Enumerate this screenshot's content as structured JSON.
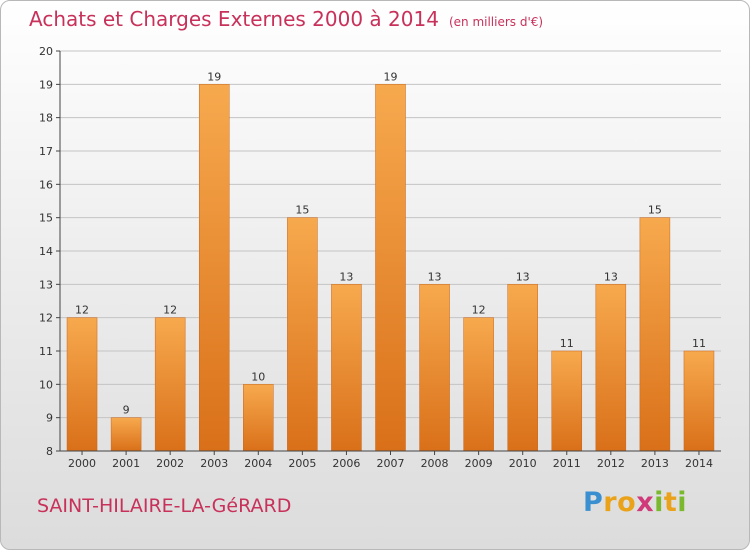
{
  "title": "Achats et Charges Externes 2000 à 2014",
  "unit": "(en milliers d'€)",
  "commune": "SAINT-HILAIRE-LA-GéRARD",
  "logo": {
    "text": "Proxiti",
    "letters": [
      {
        "char": "P",
        "color": "#3a8fd0"
      },
      {
        "char": "r",
        "color": "#e9a21a"
      },
      {
        "char": "o",
        "color": "#e9a21a"
      },
      {
        "char": "x",
        "color": "#d03a7a"
      },
      {
        "char": "i",
        "color": "#7ab82e"
      },
      {
        "char": "t",
        "color": "#e9a21a"
      },
      {
        "char": "i",
        "color": "#7ab82e"
      }
    ]
  },
  "colors": {
    "title": "#c8315a",
    "bar_light": "#f7a94e",
    "bar_dark": "#d97019",
    "axis": "#444444",
    "grid": "#c4c4c4"
  },
  "chart_data": {
    "type": "bar",
    "categories": [
      "2000",
      "2001",
      "2002",
      "2003",
      "2004",
      "2005",
      "2006",
      "2007",
      "2008",
      "2009",
      "2010",
      "2011",
      "2012",
      "2013",
      "2014"
    ],
    "values": [
      12,
      9,
      12,
      19,
      10,
      15,
      13,
      19,
      13,
      12,
      13,
      11,
      13,
      15,
      11
    ],
    "data_labels": [
      "12",
      "9",
      "12",
      "19",
      "10",
      "15",
      "13",
      "19",
      "13",
      "12",
      "13",
      "11",
      "13",
      "15",
      "11"
    ],
    "yticks": [
      8,
      9,
      10,
      11,
      12,
      13,
      14,
      15,
      16,
      17,
      18,
      19,
      20
    ],
    "ylim": [
      8,
      20
    ],
    "grid": true,
    "title": "Achats et Charges Externes 2000 à 2014",
    "xlabel": "",
    "ylabel": ""
  }
}
